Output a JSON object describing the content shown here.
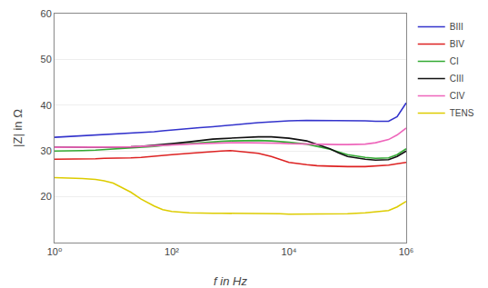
{
  "chart_data": {
    "type": "line",
    "xlabel": "f in Hz",
    "ylabel": "|Z| in Ω",
    "log": "x",
    "grid": "y",
    "legend": "upper right",
    "xlim": [
      1,
      1000000
    ],
    "ylim": [
      10,
      60
    ],
    "xticks": [
      {
        "value": 1,
        "label": "10⁰"
      },
      {
        "value": 100,
        "label": "10²"
      },
      {
        "value": 10000,
        "label": "10⁴"
      },
      {
        "value": 1000000,
        "label": "10⁶"
      }
    ],
    "yticks": [
      20,
      30,
      40,
      50,
      60
    ],
    "x": [
      1,
      2,
      3,
      5,
      7,
      10,
      20,
      30,
      50,
      70,
      100,
      200,
      300,
      500,
      700,
      1000,
      2000,
      3000,
      5000,
      7000,
      10000,
      20000,
      30000,
      50000,
      70000,
      100000,
      200000,
      300000,
      500000,
      700000,
      1000000
    ],
    "series": [
      {
        "name": "BIII",
        "color": "#3333cc",
        "values": [
          33.0,
          33.2,
          33.3,
          33.4,
          33.5,
          33.6,
          33.8,
          34.0,
          34.2,
          34.4,
          34.6,
          34.9,
          35.1,
          35.3,
          35.5,
          35.7,
          36.0,
          36.2,
          36.4,
          36.5,
          36.6,
          36.7,
          36.7,
          36.7,
          36.7,
          36.7,
          36.6,
          36.5,
          36.5,
          37.5,
          40.5
        ]
      },
      {
        "name": "BIV",
        "color": "#dd2222",
        "values": [
          28.2,
          28.2,
          28.3,
          28.3,
          28.4,
          28.4,
          28.5,
          28.6,
          28.8,
          29.0,
          29.2,
          29.5,
          29.7,
          29.9,
          30.0,
          30.1,
          29.8,
          29.5,
          28.8,
          28.2,
          27.5,
          27.0,
          26.8,
          26.7,
          26.6,
          26.6,
          26.6,
          26.7,
          26.9,
          27.2,
          27.5
        ]
      },
      {
        "name": "CI",
        "color": "#33aa33",
        "values": [
          30.0,
          30.0,
          30.1,
          30.2,
          30.3,
          30.4,
          30.6,
          30.8,
          31.0,
          31.2,
          31.4,
          31.6,
          31.8,
          32.0,
          32.1,
          32.2,
          32.3,
          32.3,
          32.2,
          32.1,
          31.9,
          31.5,
          31.0,
          30.4,
          29.8,
          29.2,
          28.6,
          28.4,
          28.5,
          29.2,
          30.5
        ]
      },
      {
        "name": "CIII",
        "color": "#111111",
        "values": [
          30.8,
          30.8,
          30.8,
          30.8,
          30.8,
          30.8,
          30.9,
          31.0,
          31.2,
          31.4,
          31.6,
          32.0,
          32.3,
          32.6,
          32.7,
          32.8,
          33.0,
          33.1,
          33.1,
          33.0,
          32.8,
          32.2,
          31.5,
          30.5,
          29.6,
          28.8,
          28.2,
          28.0,
          28.1,
          28.8,
          30.0
        ]
      },
      {
        "name": "CIV",
        "color": "#ee66bb",
        "values": [
          30.8,
          30.8,
          30.8,
          30.8,
          30.8,
          30.8,
          30.9,
          31.0,
          31.1,
          31.2,
          31.3,
          31.5,
          31.6,
          31.7,
          31.8,
          31.8,
          31.8,
          31.8,
          31.8,
          31.7,
          31.6,
          31.5,
          31.4,
          31.4,
          31.4,
          31.4,
          31.5,
          31.8,
          32.5,
          33.5,
          35.0
        ]
      },
      {
        "name": "TENS",
        "color": "#ddcc00",
        "values": [
          24.2,
          24.1,
          24.0,
          23.8,
          23.5,
          23.0,
          21.0,
          19.5,
          18.0,
          17.2,
          16.8,
          16.5,
          16.4,
          16.4,
          16.4,
          16.4,
          16.4,
          16.4,
          16.3,
          16.3,
          16.2,
          16.2,
          16.2,
          16.2,
          16.2,
          16.3,
          16.5,
          16.7,
          17.0,
          17.8,
          19.0
        ]
      }
    ]
  }
}
